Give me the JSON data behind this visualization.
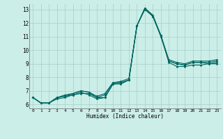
{
  "xlabel": "Humidex (Indice chaleur)",
  "ylabel": "",
  "bg_color": "#cceee8",
  "grid_color": "#aad4cc",
  "line_color": "#006660",
  "xlim": [
    -0.5,
    23.5
  ],
  "ylim": [
    5.7,
    13.4
  ],
  "xticks": [
    0,
    1,
    2,
    3,
    4,
    5,
    6,
    7,
    8,
    9,
    10,
    11,
    12,
    13,
    14,
    15,
    16,
    17,
    18,
    19,
    20,
    21,
    22,
    23
  ],
  "yticks": [
    6,
    7,
    8,
    9,
    10,
    11,
    12,
    13
  ],
  "series": [
    [
      6.5,
      6.1,
      6.1,
      6.5,
      6.6,
      6.7,
      6.8,
      6.8,
      6.5,
      6.5,
      7.5,
      7.6,
      7.8,
      11.8,
      13.1,
      12.5,
      11.0,
      9.2,
      9.0,
      8.9,
      9.1,
      9.1,
      9.0,
      9.1
    ],
    [
      6.5,
      6.1,
      6.1,
      6.4,
      6.5,
      6.7,
      6.9,
      6.7,
      6.4,
      6.5,
      7.5,
      7.5,
      7.8,
      11.8,
      13.0,
      12.5,
      11.1,
      9.1,
      8.8,
      8.8,
      8.9,
      8.9,
      9.0,
      9.0
    ],
    [
      6.5,
      6.1,
      6.1,
      6.5,
      6.6,
      6.8,
      7.0,
      6.9,
      6.5,
      6.7,
      7.6,
      7.6,
      7.8,
      11.8,
      13.1,
      12.5,
      11.1,
      9.2,
      9.0,
      8.9,
      9.1,
      9.1,
      9.1,
      9.2
    ],
    [
      6.5,
      6.1,
      6.1,
      6.5,
      6.7,
      6.8,
      7.0,
      6.9,
      6.6,
      6.8,
      7.6,
      7.7,
      7.9,
      11.8,
      13.1,
      12.6,
      11.1,
      9.3,
      9.1,
      9.0,
      9.2,
      9.2,
      9.2,
      9.3
    ]
  ]
}
